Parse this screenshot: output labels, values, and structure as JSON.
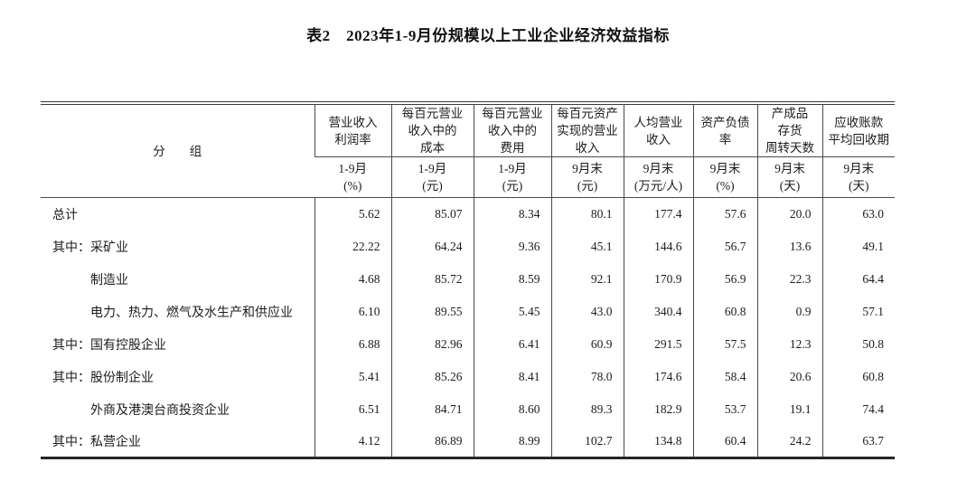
{
  "title": "表2　2023年1-9月份规模以上工业企业经济效益指标",
  "table": {
    "group_header": "分　　组",
    "columns": [
      {
        "name": "营业收入\n利润率",
        "period": "1-9月",
        "unit": "(%)"
      },
      {
        "name": "每百元营业\n收入中的\n成本",
        "period": "1-9月",
        "unit": "(元)"
      },
      {
        "name": "每百元营业\n收入中的\n费用",
        "period": "1-9月",
        "unit": "(元)"
      },
      {
        "name": "每百元资产\n实现的营业\n收入",
        "period": "9月末",
        "unit": "(元)"
      },
      {
        "name": "人均营业\n收入",
        "period": "9月末",
        "unit": "(万元/人)"
      },
      {
        "name": "资产负债\n率",
        "period": "9月末",
        "unit": "(%)"
      },
      {
        "name": "产成品\n存货\n周转天数",
        "period": "9月末",
        "unit": "(天)"
      },
      {
        "name": "应收账款\n平均回收期",
        "period": "9月末",
        "unit": "(天)"
      }
    ],
    "rows": [
      {
        "prefix": "",
        "indent": false,
        "label": "总计",
        "values": [
          "5.62",
          "85.07",
          "8.34",
          "80.1",
          "177.4",
          "57.6",
          "20.0",
          "63.0"
        ]
      },
      {
        "prefix": "其中：",
        "indent": false,
        "label": "采矿业",
        "values": [
          "22.22",
          "64.24",
          "9.36",
          "45.1",
          "144.6",
          "56.7",
          "13.6",
          "49.1"
        ]
      },
      {
        "prefix": "",
        "indent": true,
        "label": "制造业",
        "values": [
          "4.68",
          "85.72",
          "8.59",
          "92.1",
          "170.9",
          "56.9",
          "22.3",
          "64.4"
        ]
      },
      {
        "prefix": "",
        "indent": true,
        "label": "电力、热力、燃气及水生产和供应业",
        "values": [
          "6.10",
          "89.55",
          "5.45",
          "43.0",
          "340.4",
          "60.8",
          "0.9",
          "57.1"
        ]
      },
      {
        "prefix": "其中：",
        "indent": false,
        "label": "国有控股企业",
        "values": [
          "6.88",
          "82.96",
          "6.41",
          "60.9",
          "291.5",
          "57.5",
          "12.3",
          "50.8"
        ]
      },
      {
        "prefix": "其中：",
        "indent": false,
        "label": "股份制企业",
        "values": [
          "5.41",
          "85.26",
          "8.41",
          "78.0",
          "174.6",
          "58.4",
          "20.6",
          "60.8"
        ]
      },
      {
        "prefix": "",
        "indent": true,
        "label": "外商及港澳台商投资企业",
        "values": [
          "6.51",
          "84.71",
          "8.60",
          "89.3",
          "182.9",
          "53.7",
          "19.1",
          "74.4"
        ]
      },
      {
        "prefix": "其中：",
        "indent": false,
        "label": "私营企业",
        "values": [
          "4.12",
          "86.89",
          "8.99",
          "102.7",
          "134.8",
          "60.4",
          "24.2",
          "63.7"
        ]
      }
    ]
  }
}
